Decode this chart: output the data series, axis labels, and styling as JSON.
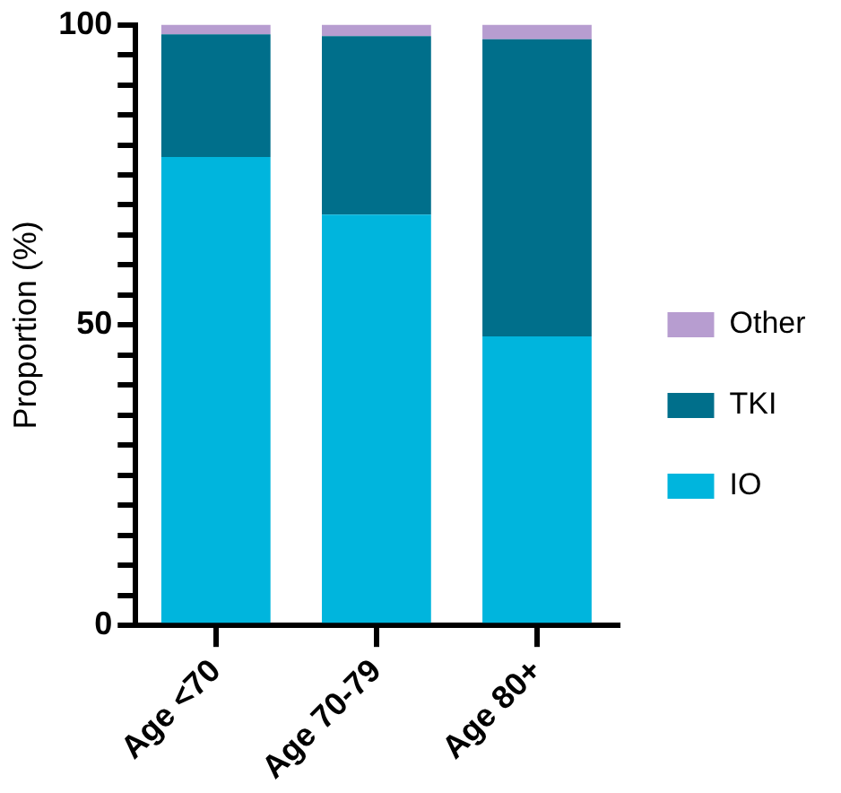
{
  "chart_data": {
    "type": "bar",
    "stacked": true,
    "ylabel": "Proportion (%)",
    "categories": [
      "Age <70",
      "Age 70-79",
      "Age 80+"
    ],
    "series": [
      {
        "name": "IO",
        "color": "#00b5dd",
        "values": [
          78,
          68.4,
          48.1
        ]
      },
      {
        "name": "TKI",
        "color": "#006f8b",
        "values": [
          20.4,
          29.7,
          49.5
        ]
      },
      {
        "name": "Other",
        "color": "#b79dd0",
        "values": [
          1.6,
          1.9,
          2.4
        ]
      }
    ],
    "ylim": [
      0,
      100
    ],
    "yticks": [
      0,
      {
        "value": 5,
        "label": null
      },
      {
        "value": 10,
        "label": null
      },
      {
        "value": 15,
        "label": null
      },
      {
        "value": 20,
        "label": null
      },
      {
        "value": 25,
        "label": null
      },
      {
        "value": 30,
        "label": null
      },
      {
        "value": 35,
        "label": null
      },
      {
        "value": 40,
        "label": null
      },
      {
        "value": 45,
        "label": null
      },
      50,
      {
        "value": 55,
        "label": null
      },
      {
        "value": 60,
        "label": null
      },
      {
        "value": 65,
        "label": null
      },
      {
        "value": 70,
        "label": null
      },
      {
        "value": 75,
        "label": null
      },
      {
        "value": 80,
        "label": null
      },
      {
        "value": 85,
        "label": null
      },
      {
        "value": 90,
        "label": null
      },
      {
        "value": 95,
        "label": null
      },
      100
    ],
    "grid": false,
    "legend": "right"
  }
}
